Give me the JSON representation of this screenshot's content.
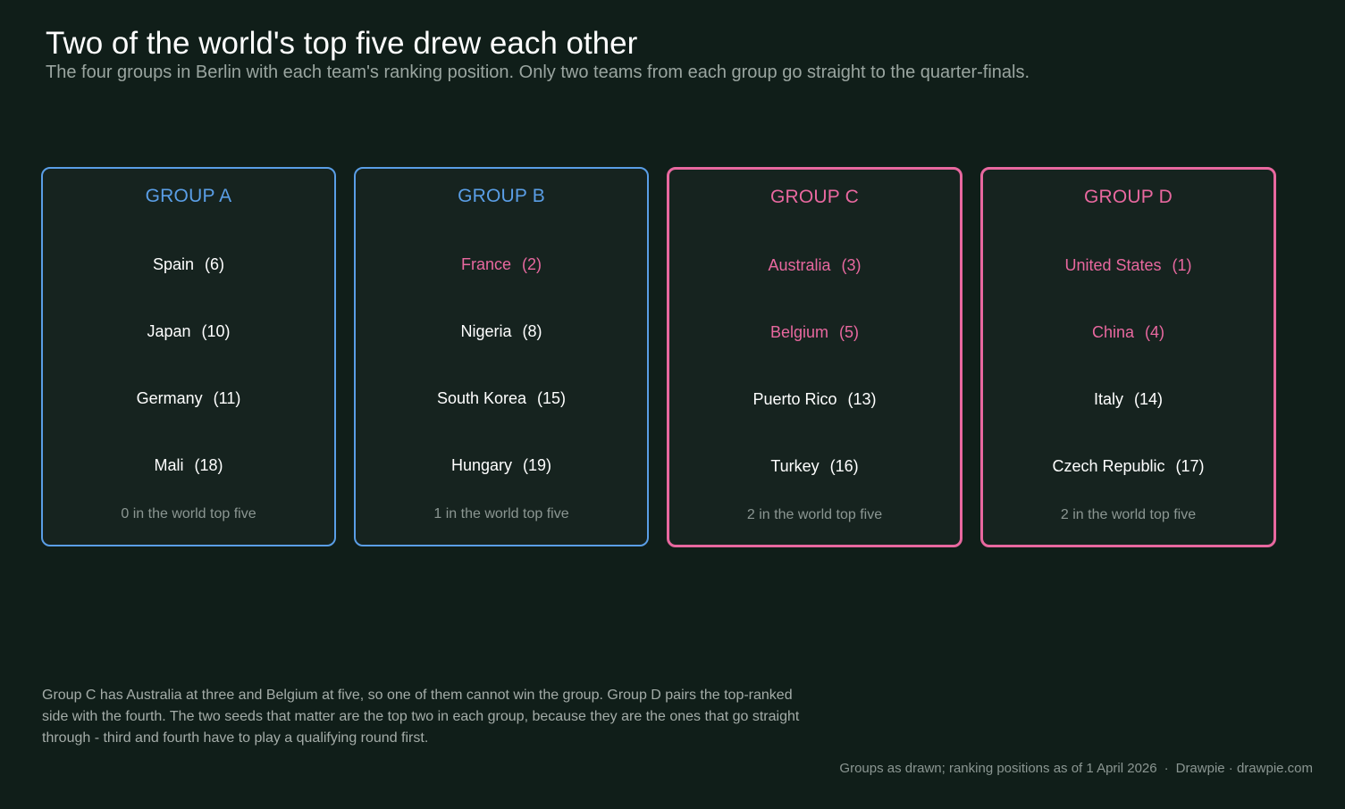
{
  "title": "Two of the world's top five drew each other",
  "subtitle": "The four groups in Berlin with each team's ranking position. Only two teams from each group go straight to the quarter-finals.",
  "colors": {
    "background": "#101e19",
    "card_background": "#16231f",
    "accent_blue": "#5a9ee6",
    "accent_pink": "#e8689f",
    "muted_text": "#8b9692"
  },
  "groups": [
    {
      "name": "GROUP A",
      "highlight": false,
      "count_label": "0 in the world top five",
      "teams": [
        {
          "name": "Spain",
          "rank": "(6)",
          "top_five": false
        },
        {
          "name": "Japan",
          "rank": "(10)",
          "top_five": false
        },
        {
          "name": "Germany",
          "rank": "(11)",
          "top_five": false
        },
        {
          "name": "Mali",
          "rank": "(18)",
          "top_five": false
        }
      ]
    },
    {
      "name": "GROUP B",
      "highlight": false,
      "count_label": "1 in the world top five",
      "teams": [
        {
          "name": "France",
          "rank": "(2)",
          "top_five": true
        },
        {
          "name": "Nigeria",
          "rank": "(8)",
          "top_five": false
        },
        {
          "name": "South Korea",
          "rank": "(15)",
          "top_five": false
        },
        {
          "name": "Hungary",
          "rank": "(19)",
          "top_five": false
        }
      ]
    },
    {
      "name": "GROUP C",
      "highlight": true,
      "count_label": "2 in the world top five",
      "teams": [
        {
          "name": "Australia",
          "rank": "(3)",
          "top_five": true
        },
        {
          "name": "Belgium",
          "rank": "(5)",
          "top_five": true
        },
        {
          "name": "Puerto Rico",
          "rank": "(13)",
          "top_five": false
        },
        {
          "name": "Turkey",
          "rank": "(16)",
          "top_five": false
        }
      ]
    },
    {
      "name": "GROUP D",
      "highlight": true,
      "count_label": "2 in the world top five",
      "teams": [
        {
          "name": "United States",
          "rank": "(1)",
          "top_five": true
        },
        {
          "name": "China",
          "rank": "(4)",
          "top_five": true
        },
        {
          "name": "Italy",
          "rank": "(14)",
          "top_five": false
        },
        {
          "name": "Czech Republic",
          "rank": "(17)",
          "top_five": false
        }
      ]
    }
  ],
  "note": "Group C has Australia at three and Belgium at five, so one of them cannot win the group. Group D pairs the top-ranked side with the fourth. The two seeds that matter are the top two in each group, because they are the ones that go straight through - third and fourth have to play a qualifying round first.",
  "footer": {
    "source": "Groups as drawn; ranking positions as of 1 April 2026",
    "separator": "·",
    "credit": "Drawpie · drawpie.com"
  }
}
